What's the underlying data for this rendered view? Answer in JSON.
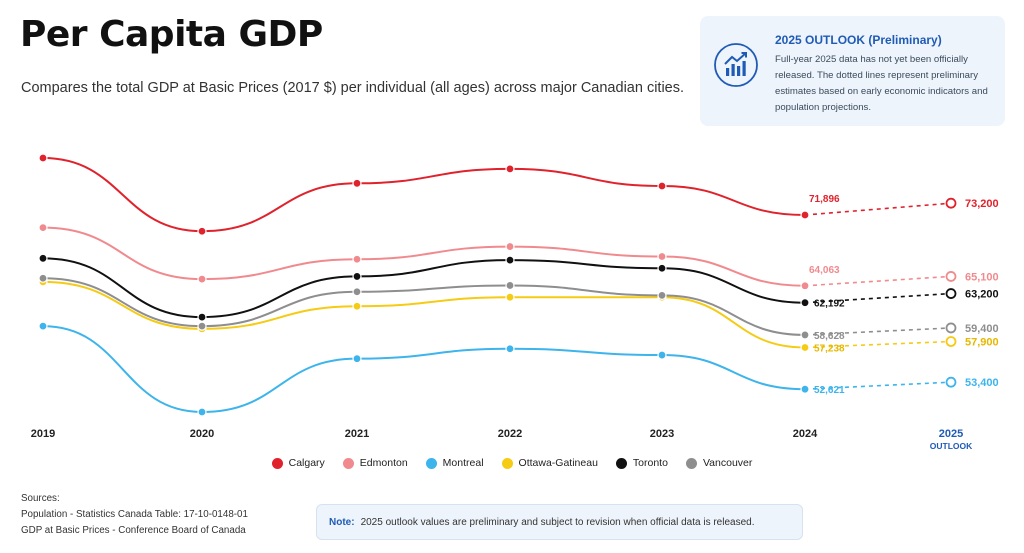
{
  "header": {
    "title": "Per Capita GDP",
    "subtitle": "Compares the total GDP at Basic Prices (2017 $) per individual (all ages) across major Canadian cities."
  },
  "outlook": {
    "title": "2025 OUTLOOK (Preliminary)",
    "text": "Full-year 2025 data has not yet been officially released. The dotted lines represent preliminary estimates based on early economic indicators and population projections.",
    "icon": "trending-up-chart-icon"
  },
  "sources": {
    "heading": "Sources:",
    "lines": [
      "Population - Statistics Canada Table: 17-10-0148-01",
      "GDP at Basic Prices - Conference Board of Canada"
    ]
  },
  "note": {
    "label": "Note:",
    "text": "2025 outlook values are preliminary and subject to revision when official data is released."
  },
  "chart_data": {
    "type": "line",
    "title": "Per Capita GDP",
    "x": [
      "2019",
      "2020",
      "2021",
      "2022",
      "2023",
      "2024",
      "2025"
    ],
    "x_sublabels": {
      "2025": "OUTLOOK"
    },
    "preliminary_from_index": 5,
    "ylim": [
      50000,
      80000
    ],
    "grid": false,
    "legend_position": "bottom",
    "series": [
      {
        "name": "Calgary",
        "color": "#e0222c",
        "values": [
          78200,
          70100,
          75400,
          77000,
          75100,
          71896,
          73200
        ],
        "labels": {
          "5": "71,896",
          "6": "73,200"
        }
      },
      {
        "name": "Edmonton",
        "color": "#f08a8e",
        "values": [
          70500,
          64800,
          67000,
          68400,
          67300,
          64063,
          65100
        ],
        "labels": {
          "5": "64,063",
          "6": "65,100"
        }
      },
      {
        "name": "Montreal",
        "color": "#3db4ec",
        "values": [
          59600,
          50100,
          56000,
          57100,
          56400,
          52621,
          53400
        ],
        "labels": {
          "5": "52,621",
          "6": "53,400"
        }
      },
      {
        "name": "Ottawa-Gatineau",
        "color": "#f5cb14",
        "values": [
          64500,
          59300,
          61800,
          62800,
          62800,
          57238,
          57900
        ],
        "labels": {
          "5": "57,238",
          "6": "57,900"
        }
      },
      {
        "name": "Toronto",
        "color": "#111111",
        "values": [
          67100,
          60600,
          65100,
          66900,
          66000,
          62192,
          63200
        ],
        "labels": {
          "5": "62,192",
          "6": "63,200"
        }
      },
      {
        "name": "Vancouver",
        "color": "#8e8e8e",
        "values": [
          64900,
          59600,
          63400,
          64100,
          63000,
          58628,
          59400
        ],
        "labels": {
          "5": "58,628",
          "6": "59,400"
        }
      }
    ]
  }
}
